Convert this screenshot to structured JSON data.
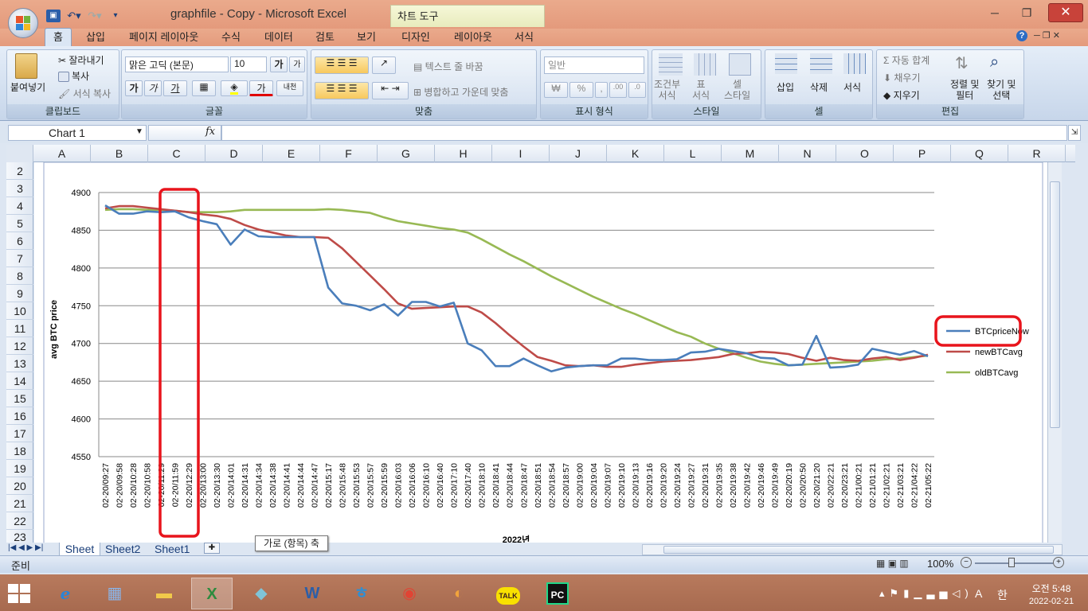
{
  "window": {
    "title": "graphfile - Copy  -  Microsoft Excel",
    "context_tab": "차트 도구",
    "minimize": "─",
    "restore": "❐",
    "close": "✕"
  },
  "ribbon_tabs": [
    "홈",
    "삽입",
    "페이지 레이아웃",
    "수식",
    "데이터",
    "검토",
    "보기",
    "디자인",
    "레이아웃",
    "서식"
  ],
  "clipboard": {
    "paste": "붙여넣기",
    "cut": "잘라내기",
    "copy": "복사",
    "format_painter": "서식 복사",
    "label": "클립보드"
  },
  "font": {
    "name": "맑은 고딕 (본문)",
    "size": "10",
    "grow": "가",
    "shrink": "가",
    "bold": "가",
    "italic": "가",
    "underline": "가",
    "color": "가",
    "phonetic": "내천",
    "label": "글꼴"
  },
  "alignment": {
    "wrap": "텍스트 줄 바꿈",
    "merge": "병합하고 가운데 맞춤",
    "label": "맞춤"
  },
  "number": {
    "format": "일반",
    "currency": "₩",
    "percent": "%",
    "comma": ",",
    "inc": ".00",
    "dec": ".0",
    "label": "표시 형식"
  },
  "styles": {
    "conditional": "조건부\n서식",
    "table": "표\n서식",
    "cell": "셀\n스타일",
    "label": "스타일"
  },
  "cells": {
    "insert": "삽입",
    "delete": "삭제",
    "format": "서식",
    "label": "셀"
  },
  "editing": {
    "autosum": "자동 합계",
    "fill": "채우기",
    "clear": "지우기",
    "sort": "정렬 및\n필터",
    "find": "찾기 및\n선택",
    "label": "편집"
  },
  "namebox": {
    "value": "Chart 1"
  },
  "fx": "fx",
  "columns": [
    "A",
    "B",
    "C",
    "D",
    "E",
    "F",
    "G",
    "H",
    "I",
    "J",
    "K",
    "L",
    "M",
    "N",
    "O",
    "P",
    "Q",
    "R"
  ],
  "rows": [
    "2",
    "3",
    "4",
    "5",
    "6",
    "7",
    "8",
    "9",
    "10",
    "11",
    "12",
    "13",
    "14",
    "15",
    "16",
    "17",
    "18",
    "19",
    "20",
    "21",
    "22",
    "23"
  ],
  "sheets": [
    "Sheet",
    "Sheet2",
    "Sheet1"
  ],
  "tooltip": "가로 (항목) 축",
  "status": {
    "ready": "준비",
    "zoom": "100%"
  },
  "clock": {
    "time": "오전 5:48",
    "date": "2022-02-21"
  },
  "tray": {
    "ime": "A",
    "lang": "한"
  },
  "chart_data": {
    "type": "line",
    "title": "",
    "xlabel": "2022년",
    "ylabel": "avg BTC price",
    "ylim": [
      4550,
      4900
    ],
    "yticks": [
      4550,
      4600,
      4650,
      4700,
      4750,
      4800,
      4850,
      4900
    ],
    "categories": [
      "02-20/09:27",
      "02-20/09:58",
      "02-20/10:28",
      "02-20/10:58",
      "02-20/11:29",
      "02-20/11:59",
      "02-20/12:29",
      "02-20/13:00",
      "02-20/13:30",
      "02-20/14:01",
      "02-20/14:31",
      "02-20/14:34",
      "02-20/14:38",
      "02-20/14:41",
      "02-20/14:44",
      "02-20/14:47",
      "02-20/15:17",
      "02-20/15:48",
      "02-20/15:53",
      "02-20/15:57",
      "02-20/15:59",
      "02-20/16:03",
      "02-20/16:06",
      "02-20/16:10",
      "02-20/16:40",
      "02-20/17:10",
      "02-20/17:40",
      "02-20/18:10",
      "02-20/18:41",
      "02-20/18:44",
      "02-20/18:47",
      "02-20/18:51",
      "02-20/18:54",
      "02-20/18:57",
      "02-20/19:00",
      "02-20/19:04",
      "02-20/19:07",
      "02-20/19:10",
      "02-20/19:13",
      "02-20/19:16",
      "02-20/19:20",
      "02-20/19:24",
      "02-20/19:27",
      "02-20/19:31",
      "02-20/19:35",
      "02-20/19:38",
      "02-20/19:42",
      "02-20/19:46",
      "02-20/19:49",
      "02-20/20:19",
      "02-20/20:50",
      "02-20/21:20",
      "02-20/22:21",
      "02-20/23:21",
      "02-21/00:21",
      "02-21/01:21",
      "02-21/02:21",
      "02-21/03:21",
      "02-21/04:22",
      "02-21/05:22"
    ],
    "series": [
      {
        "name": "BTCpriceNow",
        "color": "#4a7ebb",
        "values": [
          4883,
          4872,
          4872,
          4875,
          4874,
          4875,
          4867,
          4862,
          4858,
          4831,
          4851,
          4842,
          4841,
          4841,
          4841,
          4841,
          4774,
          4753,
          4750,
          4744,
          4752,
          4737,
          4755,
          4755,
          4749,
          4754,
          4700,
          4691,
          4670,
          4670,
          4680,
          4671,
          4663,
          4668,
          4670,
          4671,
          4671,
          4680,
          4680,
          4678,
          4678,
          4679,
          4688,
          4689,
          4693,
          4690,
          4687,
          4681,
          4680,
          4671,
          4672,
          4710,
          4668,
          4669,
          4672,
          4693,
          4689,
          4685,
          4690,
          4683
        ]
      },
      {
        "name": "newBTCavg",
        "color": "#be4b48",
        "values": [
          4879,
          4882,
          4882,
          4880,
          4878,
          4876,
          4874,
          4871,
          4869,
          4865,
          4857,
          4851,
          4847,
          4843,
          4841,
          4841,
          4840,
          4826,
          4808,
          4790,
          4772,
          4753,
          4746,
          4747,
          4748,
          4749,
          4749,
          4741,
          4727,
          4711,
          4696,
          4682,
          4677,
          4671,
          4670,
          4671,
          4669,
          4669,
          4672,
          4674,
          4676,
          4677,
          4678,
          4680,
          4682,
          4686,
          4687,
          4689,
          4688,
          4686,
          4681,
          4677,
          4681,
          4678,
          4677,
          4680,
          4682,
          4678,
          4681,
          4685
        ]
      },
      {
        "name": "oldBTCavg",
        "color": "#98b954",
        "values": [
          4877,
          4878,
          4878,
          4877,
          4877,
          4876,
          4874,
          4874,
          4874,
          4875,
          4877,
          4877,
          4877,
          4877,
          4877,
          4877,
          4878,
          4877,
          4875,
          4873,
          4867,
          4862,
          4859,
          4856,
          4853,
          4851,
          4847,
          4838,
          4828,
          4818,
          4809,
          4799,
          4789,
          4780,
          4771,
          4762,
          4754,
          4746,
          4739,
          4731,
          4723,
          4715,
          4709,
          4700,
          4693,
          4687,
          4681,
          4676,
          4673,
          4671,
          4672,
          4673,
          4674,
          4675,
          4676,
          4677,
          4679,
          4680,
          4682,
          4684
        ]
      }
    ]
  }
}
